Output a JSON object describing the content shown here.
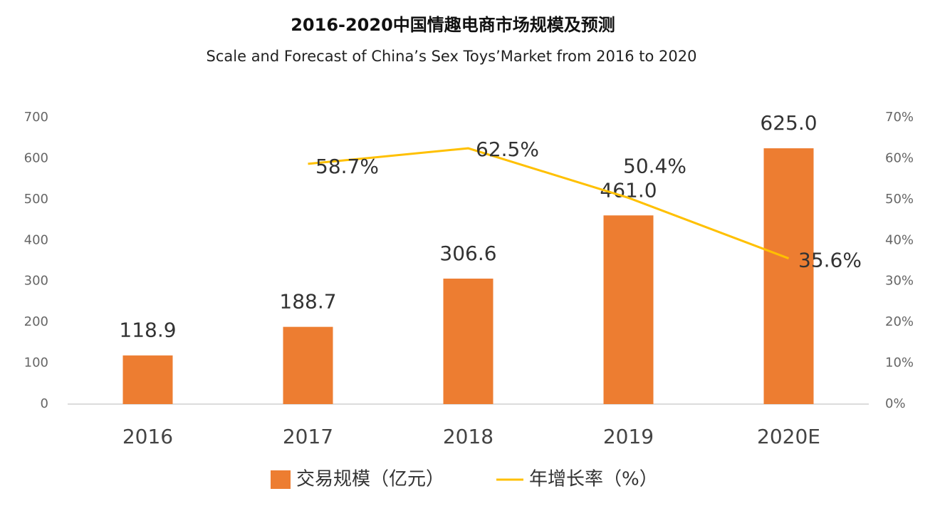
{
  "chart_data": {
    "type": "bar",
    "title": "2016-2020中国情趣电商市场规模及预测",
    "subtitle": "Scale and Forecast of China’s Sex Toys’Market from 2016 to 2020",
    "categories": [
      "2016",
      "2017",
      "2018",
      "2019",
      "2020E"
    ],
    "series": [
      {
        "name": "交易规模（亿元）",
        "type": "bar",
        "color": "#ed7d31",
        "values": [
          118.9,
          188.7,
          306.6,
          461.0,
          625.0
        ],
        "value_labels": [
          "118.9",
          "188.7",
          "306.6",
          "461.0",
          "625.0"
        ]
      },
      {
        "name": "年增长率（%）",
        "type": "line",
        "axis": "y2",
        "color": "#ffc000",
        "values": [
          null,
          58.7,
          62.5,
          50.4,
          35.6
        ],
        "value_labels": [
          null,
          "58.7%",
          "62.5%",
          "50.4%",
          "35.6%"
        ]
      }
    ],
    "ylim": [
      0,
      700
    ],
    "yticks": [
      0,
      100,
      200,
      300,
      400,
      500,
      600,
      700
    ],
    "y2lim": [
      0,
      70
    ],
    "y2ticks": [
      {
        "value": 0,
        "label": "0%"
      },
      {
        "value": 10,
        "label": "10%"
      },
      {
        "value": 20,
        "label": "20%"
      },
      {
        "value": 30,
        "label": "30%"
      },
      {
        "value": 40,
        "label": "40%"
      },
      {
        "value": 50,
        "label": "50%"
      },
      {
        "value": 60,
        "label": "60%"
      },
      {
        "value": 70,
        "label": "70%"
      }
    ],
    "grid": false,
    "legend": "bottom"
  }
}
